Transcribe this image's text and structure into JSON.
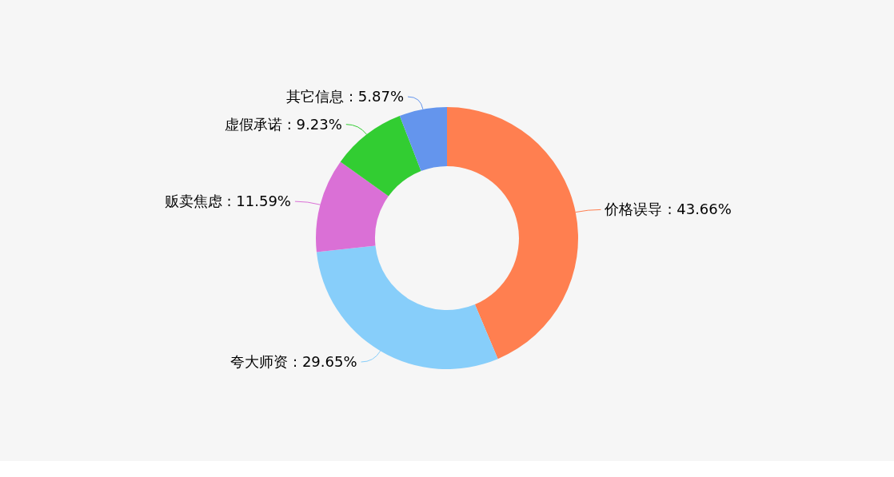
{
  "chart_data": {
    "type": "donut",
    "categories": [
      "价格误导",
      "夸大师资",
      "贩卖焦虑",
      "虚假承诺",
      "其它信息"
    ],
    "values": [
      43.66,
      29.65,
      11.59,
      9.23,
      5.87
    ],
    "value_labels": [
      ": 43.66%",
      ": 29.65%",
      ": 11.59%",
      ": 9.23%",
      ": 5.87%"
    ],
    "colors": [
      "#ff7f50",
      "#87cefa",
      "#da70d6",
      "#32cd32",
      "#6495ed"
    ]
  }
}
